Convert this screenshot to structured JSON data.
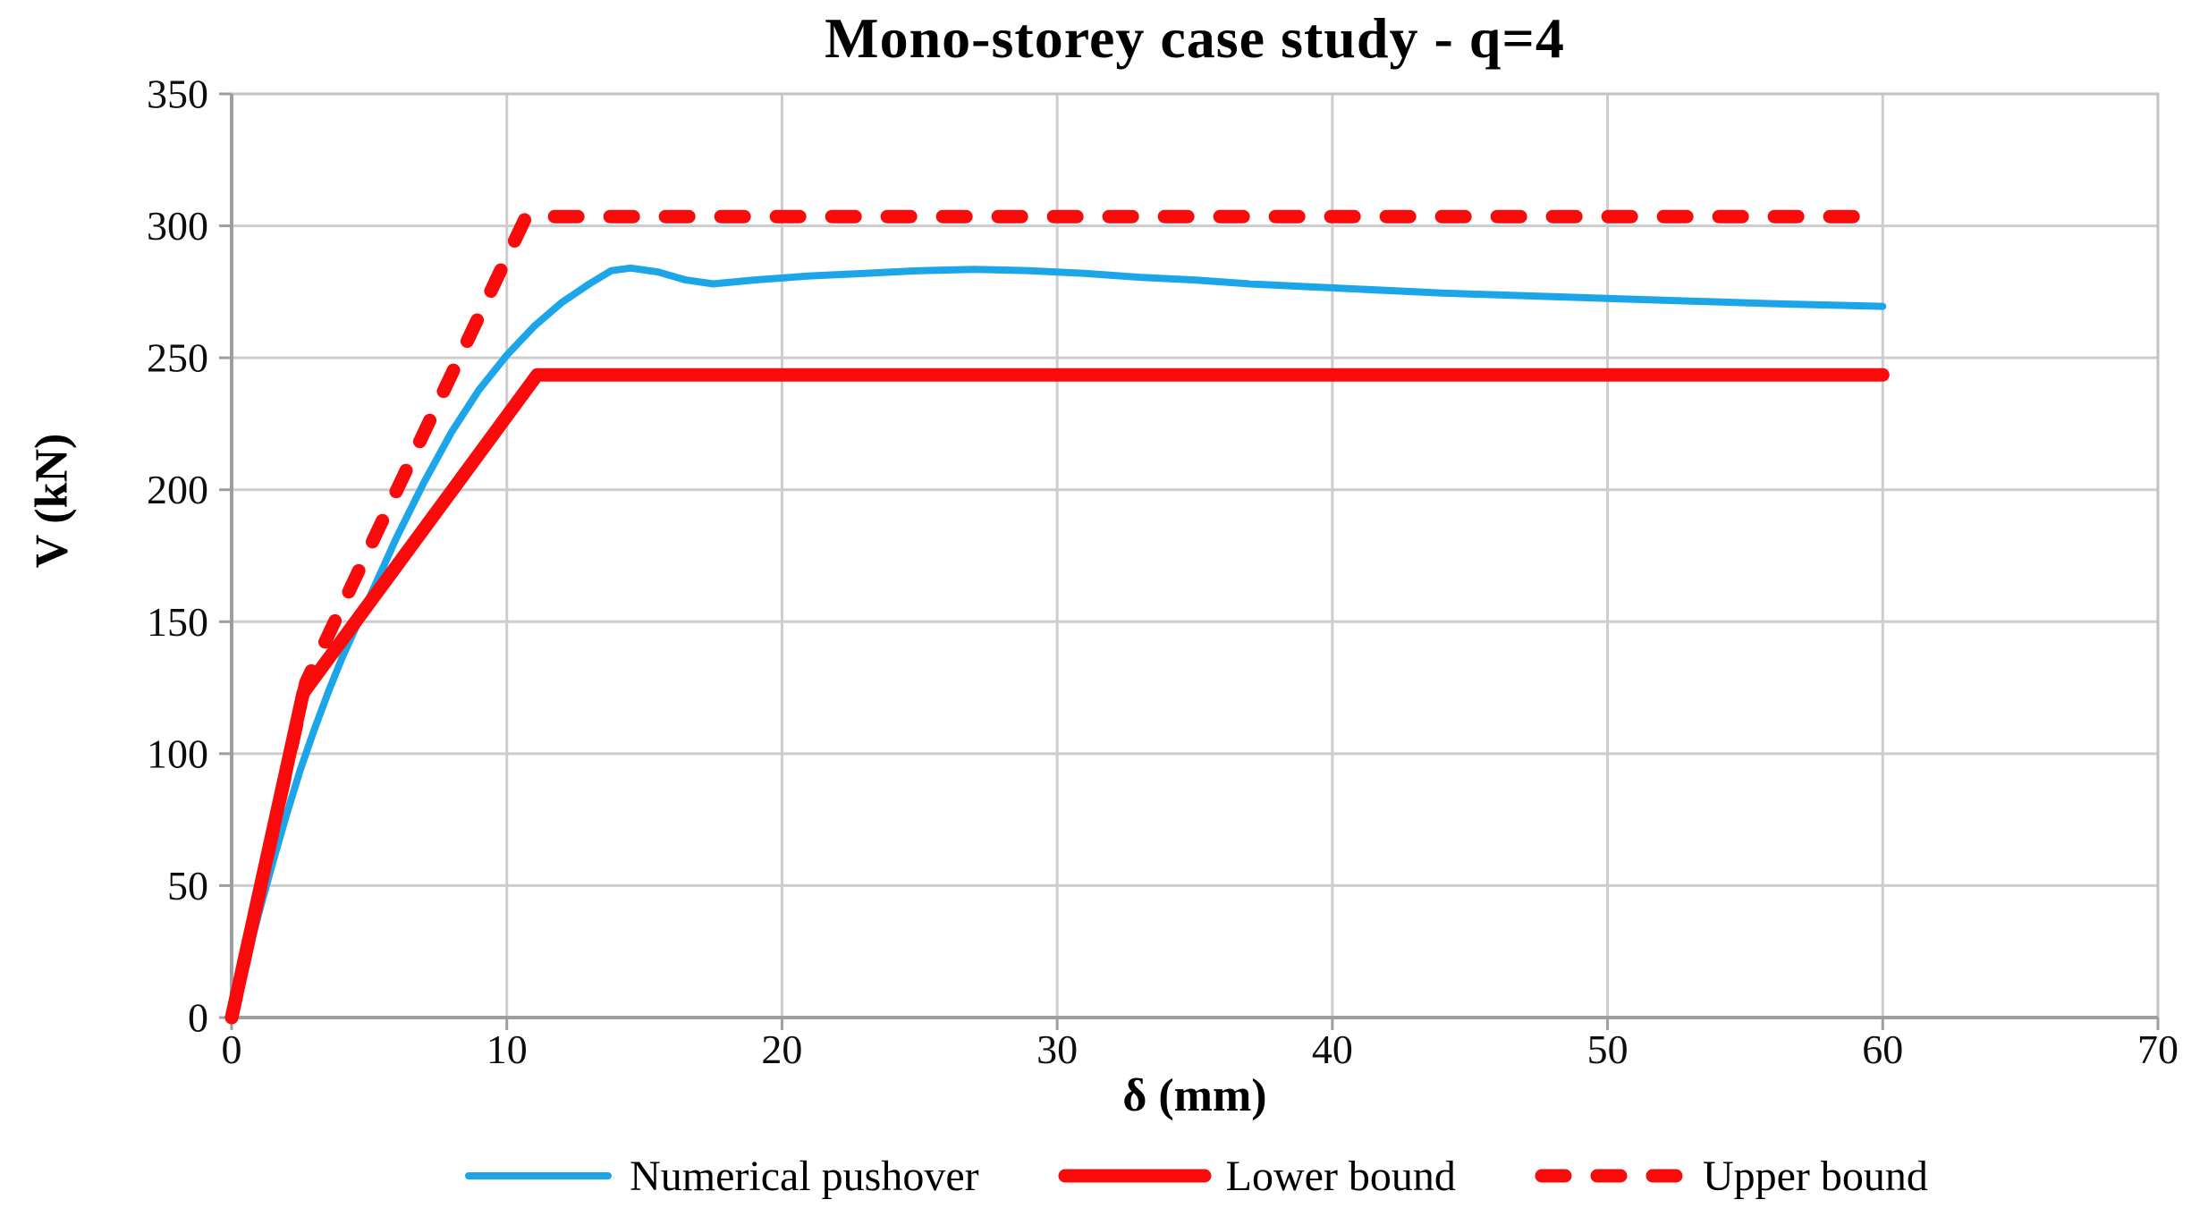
{
  "title": "Mono-storey case study - q=4",
  "colors": {
    "blue": "#1CA6E9",
    "red": "#FA0A0A",
    "grid": "#CDCDCD",
    "axis": "#9E9E9E",
    "border": "#C2C2C2",
    "text": "#0d0d0d",
    "background": "#ffffff"
  },
  "chart_data": {
    "type": "line",
    "title": "Mono-storey case study - q=4",
    "xlabel": "δ (mm)",
    "ylabel": "V (kN)",
    "xlim": [
      0,
      70
    ],
    "ylim": [
      0,
      350
    ],
    "x_ticks": [
      0,
      10,
      20,
      30,
      40,
      50,
      60,
      70
    ],
    "y_ticks": [
      0,
      50,
      100,
      150,
      200,
      250,
      300,
      350
    ],
    "grid": true,
    "legend_position": "bottom",
    "series": [
      {
        "name": "Numerical pushover",
        "color": "#1CA6E9",
        "style": "solid",
        "width": 8,
        "points": [
          [
            0,
            0
          ],
          [
            0.5,
            20
          ],
          [
            1,
            40
          ],
          [
            1.5,
            59
          ],
          [
            2,
            77
          ],
          [
            2.5,
            94
          ],
          [
            3,
            109
          ],
          [
            3.5,
            123
          ],
          [
            4,
            136
          ],
          [
            5,
            159
          ],
          [
            6,
            182
          ],
          [
            7,
            203
          ],
          [
            8,
            222
          ],
          [
            9,
            238
          ],
          [
            10,
            251
          ],
          [
            11,
            262
          ],
          [
            12,
            271
          ],
          [
            13,
            278
          ],
          [
            13.8,
            283
          ],
          [
            14.5,
            284
          ],
          [
            15.5,
            282.5
          ],
          [
            16.5,
            279.5
          ],
          [
            17.5,
            278
          ],
          [
            19,
            279.5
          ],
          [
            21,
            281
          ],
          [
            23,
            282
          ],
          [
            25,
            283
          ],
          [
            27,
            283.5
          ],
          [
            29,
            283
          ],
          [
            31,
            282
          ],
          [
            33,
            280.5
          ],
          [
            35,
            279.5
          ],
          [
            37,
            278
          ],
          [
            39,
            277
          ],
          [
            41,
            276
          ],
          [
            44,
            274.5
          ],
          [
            47,
            273.5
          ],
          [
            50,
            272.5
          ],
          [
            53,
            271.5
          ],
          [
            56,
            270.5
          ],
          [
            58,
            270
          ],
          [
            60,
            269.5
          ]
        ]
      },
      {
        "name": "Lower bound",
        "color": "#FA0A0A",
        "style": "solid",
        "width": 15,
        "points": [
          [
            0,
            0
          ],
          [
            2.6,
            123
          ],
          [
            11.1,
            243.5
          ],
          [
            60,
            243.5
          ]
        ]
      },
      {
        "name": "Upper bound",
        "color": "#FA0A0A",
        "style": "dashed",
        "width": 15,
        "points": [
          [
            0,
            0
          ],
          [
            2.7,
            127
          ],
          [
            10.7,
            303.5
          ],
          [
            60,
            303.5
          ]
        ]
      }
    ]
  }
}
